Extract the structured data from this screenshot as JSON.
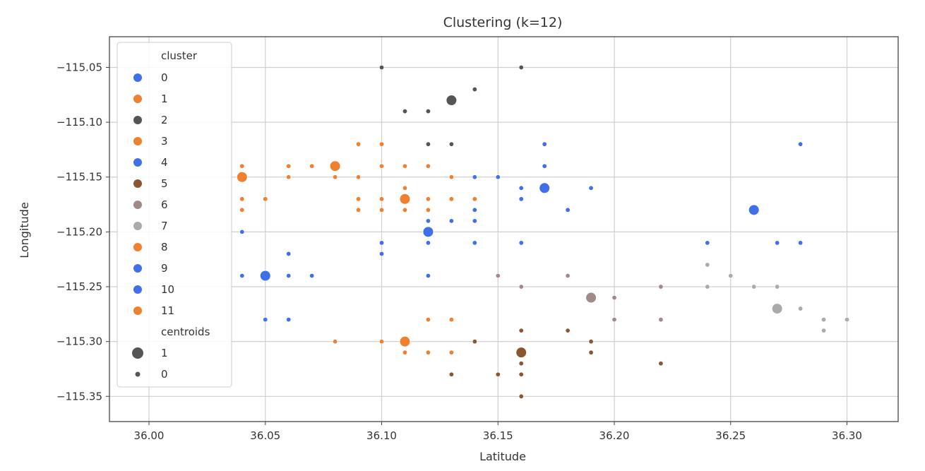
{
  "chart_data": {
    "type": "scatter",
    "title": "Clustering (k=12)",
    "xlabel": "Latitude",
    "ylabel": "Longitude",
    "xlim": [
      35.983,
      36.322
    ],
    "ylim": [
      -115.373,
      -115.022
    ],
    "xticks": [
      36.0,
      36.05,
      36.1,
      36.15,
      36.2,
      36.25,
      36.3
    ],
    "yticks": [
      -115.05,
      -115.1,
      -115.15,
      -115.2,
      -115.25,
      -115.3,
      -115.35
    ],
    "grid": true,
    "legend": {
      "placement": "top-left",
      "cluster_title": "cluster",
      "cluster_labels": [
        "0",
        "1",
        "2",
        "3",
        "4",
        "5",
        "6",
        "7",
        "8",
        "9",
        "10",
        "11"
      ],
      "centroids_title": "centroids",
      "centroid_labels": [
        "1",
        "0"
      ]
    },
    "cluster_colors": [
      "#4070e8",
      "#ee8030",
      "#555555",
      "#ee8030",
      "#4070e8",
      "#8a5530",
      "#a08a88",
      "#aaaaaa",
      "#ee8030",
      "#4070e8",
      "#4070e8",
      "#ee8030"
    ],
    "series": [
      {
        "cluster": 0,
        "points": [
          [
            36.12,
            -115.19
          ],
          [
            36.12,
            -115.21
          ],
          [
            36.13,
            -115.19
          ],
          [
            36.14,
            -115.18
          ],
          [
            36.14,
            -115.19
          ],
          [
            36.14,
            -115.21
          ],
          [
            36.12,
            -115.24
          ],
          [
            36.16,
            -115.16
          ],
          [
            36.16,
            -115.17
          ]
        ],
        "centroid": [
          36.12,
          -115.2
        ]
      },
      {
        "cluster": 1,
        "points": [
          [
            36.1,
            -115.3
          ],
          [
            36.11,
            -115.31
          ],
          [
            36.12,
            -115.31
          ],
          [
            36.13,
            -115.31
          ],
          [
            36.12,
            -115.28
          ],
          [
            36.13,
            -115.28
          ],
          [
            36.08,
            -115.3
          ]
        ],
        "centroid": [
          36.11,
          -115.3
        ]
      },
      {
        "cluster": 2,
        "points": [
          [
            36.1,
            -115.05
          ],
          [
            36.11,
            -115.09
          ],
          [
            36.12,
            -115.09
          ],
          [
            36.14,
            -115.07
          ],
          [
            36.16,
            -115.05
          ],
          [
            36.12,
            -115.12
          ],
          [
            36.13,
            -115.12
          ]
        ],
        "centroid": [
          36.13,
          -115.08
        ]
      },
      {
        "cluster": 3,
        "points": [
          [
            36.04,
            -115.14
          ],
          [
            36.04,
            -115.17
          ],
          [
            36.04,
            -115.18
          ],
          [
            36.05,
            -115.17
          ],
          [
            36.06,
            -115.14
          ],
          [
            36.06,
            -115.15
          ]
        ],
        "centroid": [
          36.04,
          -115.15
        ]
      },
      {
        "cluster": 4,
        "points": [
          [
            36.16,
            -115.21
          ],
          [
            36.17,
            -115.12
          ],
          [
            36.17,
            -115.14
          ],
          [
            36.18,
            -115.18
          ],
          [
            36.19,
            -115.16
          ],
          [
            36.14,
            -115.15
          ],
          [
            36.15,
            -115.15
          ]
        ],
        "centroid": [
          36.17,
          -115.16
        ]
      },
      {
        "cluster": 5,
        "points": [
          [
            36.14,
            -115.3
          ],
          [
            36.13,
            -115.33
          ],
          [
            36.15,
            -115.33
          ],
          [
            36.16,
            -115.29
          ],
          [
            36.16,
            -115.32
          ],
          [
            36.16,
            -115.33
          ],
          [
            36.16,
            -115.35
          ],
          [
            36.18,
            -115.29
          ],
          [
            36.19,
            -115.3
          ],
          [
            36.19,
            -115.31
          ],
          [
            36.22,
            -115.32
          ]
        ],
        "centroid": [
          36.16,
          -115.31
        ]
      },
      {
        "cluster": 6,
        "points": [
          [
            36.15,
            -115.24
          ],
          [
            36.16,
            -115.25
          ],
          [
            36.18,
            -115.24
          ],
          [
            36.2,
            -115.26
          ],
          [
            36.2,
            -115.28
          ],
          [
            36.22,
            -115.25
          ],
          [
            36.22,
            -115.28
          ]
        ],
        "centroid": [
          36.19,
          -115.26
        ]
      },
      {
        "cluster": 7,
        "points": [
          [
            36.24,
            -115.23
          ],
          [
            36.24,
            -115.25
          ],
          [
            36.25,
            -115.24
          ],
          [
            36.26,
            -115.25
          ],
          [
            36.27,
            -115.25
          ],
          [
            36.28,
            -115.27
          ],
          [
            36.29,
            -115.28
          ],
          [
            36.29,
            -115.29
          ],
          [
            36.3,
            -115.28
          ]
        ],
        "centroid": [
          36.27,
          -115.27
        ]
      },
      {
        "cluster": 8,
        "points": [
          [
            36.07,
            -115.14
          ],
          [
            36.08,
            -115.15
          ],
          [
            36.09,
            -115.12
          ],
          [
            36.09,
            -115.15
          ],
          [
            36.1,
            -115.12
          ],
          [
            36.1,
            -115.14
          ],
          [
            36.11,
            -115.14
          ],
          [
            36.12,
            -115.14
          ],
          [
            36.13,
            -115.15
          ]
        ],
        "centroid": [
          36.08,
          -115.14
        ]
      },
      {
        "cluster": 9,
        "points": [
          [
            36.24,
            -115.21
          ],
          [
            36.27,
            -115.21
          ],
          [
            36.28,
            -115.21
          ],
          [
            36.28,
            -115.12
          ]
        ],
        "centroid": [
          36.26,
          -115.18
        ]
      },
      {
        "cluster": 10,
        "points": [
          [
            36.04,
            -115.2
          ],
          [
            36.04,
            -115.24
          ],
          [
            36.05,
            -115.28
          ],
          [
            36.06,
            -115.22
          ],
          [
            36.06,
            -115.24
          ],
          [
            36.06,
            -115.28
          ],
          [
            36.07,
            -115.24
          ],
          [
            36.1,
            -115.21
          ],
          [
            36.1,
            -115.22
          ]
        ],
        "centroid": [
          36.05,
          -115.24
        ]
      },
      {
        "cluster": 11,
        "points": [
          [
            36.09,
            -115.17
          ],
          [
            36.09,
            -115.18
          ],
          [
            36.1,
            -115.17
          ],
          [
            36.1,
            -115.18
          ],
          [
            36.11,
            -115.16
          ],
          [
            36.11,
            -115.18
          ],
          [
            36.12,
            -115.17
          ],
          [
            36.12,
            -115.18
          ],
          [
            36.13,
            -115.17
          ],
          [
            36.14,
            -115.17
          ]
        ],
        "centroid": [
          36.11,
          -115.17
        ]
      }
    ]
  }
}
